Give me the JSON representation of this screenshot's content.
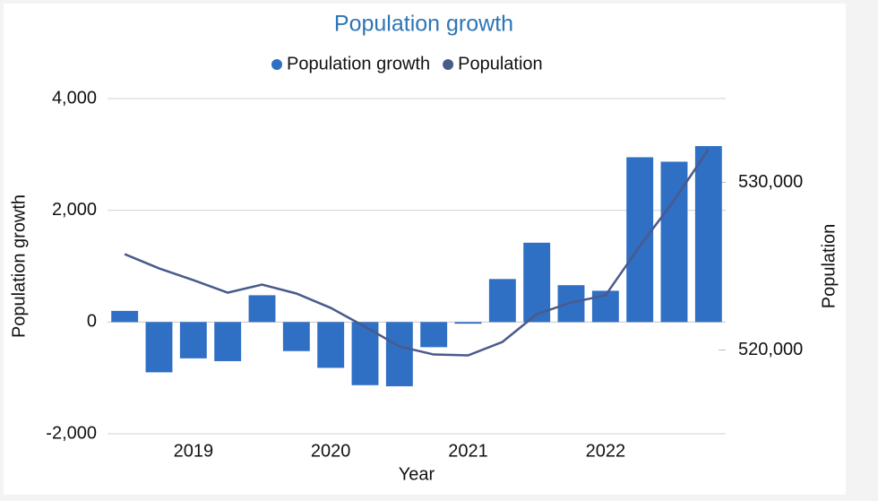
{
  "chart_data": {
    "type": "bar-line",
    "title": "Population growth",
    "x_label": "Year",
    "y_label": "Population growth",
    "y2_label": "Population",
    "categories": [
      null,
      null,
      "2019",
      null,
      null,
      null,
      "2020",
      null,
      null,
      null,
      "2021",
      null,
      null,
      null,
      "2022",
      null,
      null,
      null
    ],
    "series": [
      {
        "name": "Population growth",
        "type": "bar",
        "color": "#2f6fc4",
        "values": [
          200,
          -900,
          -650,
          -700,
          480,
          -520,
          -820,
          -1130,
          -1150,
          -450,
          -30,
          770,
          1420,
          660,
          560,
          2950,
          2870,
          3150
        ]
      },
      {
        "name": "Population",
        "type": "line",
        "axis": "y2",
        "color": "#4a5a8a",
        "values": [
          525720,
          524870,
          524170,
          523420,
          523900,
          523370,
          522510,
          521390,
          520210,
          519730,
          519680,
          520480,
          522140,
          522830,
          523260,
          526200,
          528930,
          531980
        ]
      }
    ],
    "ylim": [
      -2000,
      4000
    ],
    "yticks": [
      {
        "value": 4000,
        "label": "4,000"
      },
      {
        "value": 2000,
        "label": "2,000"
      },
      0,
      {
        "value": -2000,
        "label": "-2,000"
      }
    ],
    "y2lim": [
      515000,
      535000
    ],
    "y2ticks": [
      {
        "value": 530000,
        "label": "530,000"
      },
      {
        "value": 520000,
        "label": "520,000"
      }
    ],
    "grid": true,
    "legend": "top"
  }
}
